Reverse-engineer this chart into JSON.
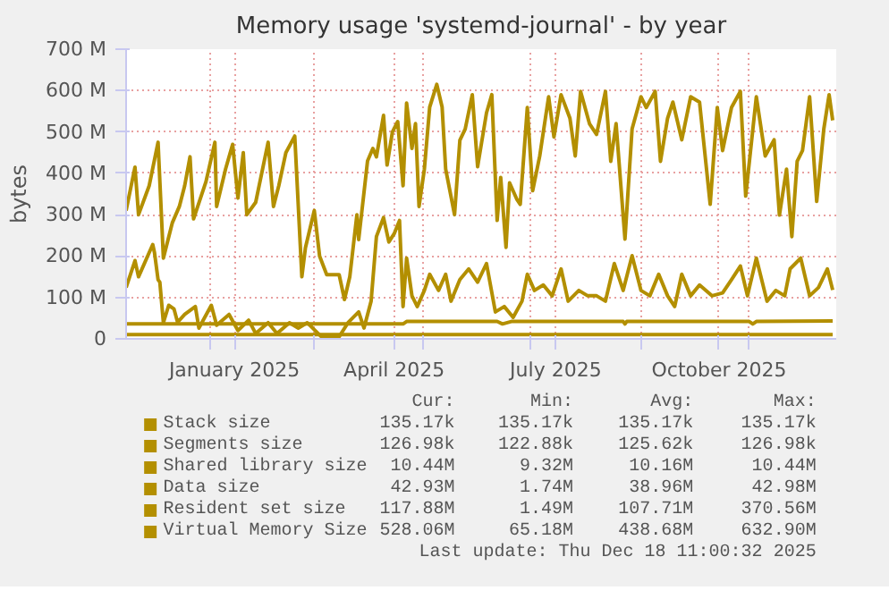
{
  "chart_data": {
    "type": "line",
    "title": "Memory usage 'systemd-journal' - by year",
    "ylabel": "bytes",
    "xlim": [
      "2024-11-15",
      "2025-12-20"
    ],
    "xticks": [
      {
        "value": "2025-01-01",
        "label": null
      },
      {
        "value": "2025-01-15",
        "label": "January 2025"
      },
      {
        "value": "2025-03-01",
        "label": null
      },
      {
        "value": "2025-04-15",
        "label": "April 2025"
      },
      {
        "value": "2025-05-01",
        "label": null
      },
      {
        "value": "2025-07-01",
        "label": null
      },
      {
        "value": "2025-07-15",
        "label": "July 2025"
      },
      {
        "value": "2025-09-01",
        "label": null
      },
      {
        "value": "2025-10-15",
        "label": "October 2025"
      },
      {
        "value": "2025-11-01",
        "label": null
      }
    ],
    "ylim": [
      0,
      700
    ],
    "yticks": [
      0,
      {
        "value": 100,
        "label": "100 M"
      },
      {
        "value": 200,
        "label": "200 M"
      },
      {
        "value": 300,
        "label": "300 M"
      },
      {
        "value": 400,
        "label": "400 M"
      },
      {
        "value": 500,
        "label": "500 M"
      },
      {
        "value": 600,
        "label": "600 M"
      },
      {
        "value": 700,
        "label": "700 M"
      }
    ],
    "grid": true,
    "legend": "bottom",
    "series": [
      {
        "name": "Stack size",
        "color": "#b38f00",
        "values": [
          null
        ]
      },
      {
        "name": "Segments size",
        "color": "#b38f00",
        "values": [
          null
        ]
      },
      {
        "name": "Shared library size",
        "color": "#b38f00",
        "x": [
          "2024-11-15",
          "2025-12-18"
        ],
        "values": [
          10,
          10
        ]
      },
      {
        "name": "Data size",
        "color": "#b38f00",
        "x": [
          "2024-11-15",
          "2025-04-20",
          "2025-04-22",
          "2025-06-12",
          "2025-06-15",
          "2025-06-20",
          "2025-08-22",
          "2025-08-23",
          "2025-08-24",
          "2025-11-01",
          "2025-11-03",
          "2025-11-05",
          "2025-12-18"
        ],
        "values": [
          36,
          36,
          42,
          42,
          36,
          42,
          42,
          36,
          42,
          42,
          36,
          42,
          43
        ]
      },
      {
        "name": "Resident set size",
        "color": "#b38f00",
        "x": [
          "2024-11-15",
          "2024-11-20",
          "2024-11-22",
          "2024-11-30",
          "2024-12-01",
          "2024-12-03",
          "2024-12-04",
          "2024-12-06",
          "2024-12-09",
          "2024-12-12",
          "2024-12-14",
          "2024-12-18",
          "2024-12-24",
          "2024-12-26",
          "2025-01-02",
          "2025-01-05",
          "2025-01-12",
          "2025-01-17",
          "2025-01-23",
          "2025-01-27",
          "2025-02-03",
          "2025-02-08",
          "2025-02-15",
          "2025-02-20",
          "2025-02-25",
          "2025-03-05",
          "2025-03-15",
          "2025-03-20",
          "2025-03-26",
          "2025-03-29",
          "2025-04-02",
          "2025-04-05",
          "2025-04-09",
          "2025-04-12",
          "2025-04-15",
          "2025-04-18",
          "2025-04-20",
          "2025-04-22",
          "2025-04-25",
          "2025-04-28",
          "2025-05-02",
          "2025-05-05",
          "2025-05-10",
          "2025-05-14",
          "2025-05-17",
          "2025-05-22",
          "2025-05-27",
          "2025-06-01",
          "2025-06-06",
          "2025-06-11",
          "2025-06-16",
          "2025-06-21",
          "2025-06-26",
          "2025-06-29",
          "2025-07-03",
          "2025-07-08",
          "2025-07-13",
          "2025-07-18",
          "2025-07-22",
          "2025-07-28",
          "2025-08-02",
          "2025-08-07",
          "2025-08-12",
          "2025-08-17",
          "2025-08-22",
          "2025-08-27",
          "2025-09-01",
          "2025-09-06",
          "2025-09-11",
          "2025-09-16",
          "2025-09-20",
          "2025-09-24",
          "2025-09-29",
          "2025-10-04",
          "2025-10-11",
          "2025-10-17",
          "2025-10-22",
          "2025-10-27",
          "2025-10-31",
          "2025-11-05",
          "2025-11-11",
          "2025-11-16",
          "2025-11-21",
          "2025-11-24",
          "2025-11-30",
          "2025-12-05",
          "2025-12-10",
          "2025-12-15",
          "2025-12-18"
        ],
        "values": [
          124,
          189,
          150,
          228,
          208,
          143,
          137,
          39,
          81,
          72,
          40,
          59,
          78,
          26,
          81,
          33,
          59,
          20,
          45,
          13,
          39,
          13,
          39,
          26,
          39,
          5,
          5,
          39,
          65,
          26,
          91,
          247,
          293,
          234,
          254,
          286,
          78,
          195,
          104,
          78,
          117,
          156,
          117,
          156,
          91,
          143,
          169,
          137,
          182,
          65,
          78,
          52,
          91,
          156,
          117,
          130,
          104,
          169,
          91,
          117,
          104,
          104,
          91,
          182,
          117,
          201,
          117,
          104,
          156,
          104,
          78,
          156,
          104,
          130,
          104,
          111,
          143,
          176,
          104,
          195,
          91,
          117,
          104,
          169,
          195,
          104,
          124,
          169,
          118
        ]
      },
      {
        "name": "Virtual Memory Size",
        "color": "#b38f00",
        "x": [
          "2024-11-15",
          "2024-11-20",
          "2024-11-22",
          "2024-11-28",
          "2024-12-03",
          "2024-12-06",
          "2024-12-11",
          "2024-12-15",
          "2024-12-18",
          "2024-12-21",
          "2024-12-23",
          "2024-12-30",
          "2025-01-04",
          "2025-01-05",
          "2025-01-10",
          "2025-01-14",
          "2025-01-17",
          "2025-01-20",
          "2025-01-22",
          "2025-01-27",
          "2025-02-03",
          "2025-02-06",
          "2025-02-09",
          "2025-02-13",
          "2025-02-18",
          "2025-02-22",
          "2025-02-24",
          "2025-03-01",
          "2025-03-04",
          "2025-03-08",
          "2025-03-15",
          "2025-03-18",
          "2025-03-21",
          "2025-03-25",
          "2025-03-26",
          "2025-03-31",
          "2025-04-03",
          "2025-04-05",
          "2025-04-09",
          "2025-04-11",
          "2025-04-14",
          "2025-04-17",
          "2025-04-20",
          "2025-04-22",
          "2025-04-25",
          "2025-04-27",
          "2025-04-29",
          "2025-05-02",
          "2025-05-05",
          "2025-05-09",
          "2025-05-12",
          "2025-05-14",
          "2025-05-19",
          "2025-05-22",
          "2025-05-25",
          "2025-05-29",
          "2025-06-01",
          "2025-06-06",
          "2025-06-09",
          "2025-06-12",
          "2025-06-14",
          "2025-06-17",
          "2025-06-19",
          "2025-06-23",
          "2025-06-25",
          "2025-06-29",
          "2025-07-02",
          "2025-07-06",
          "2025-07-11",
          "2025-07-14",
          "2025-07-18",
          "2025-07-23",
          "2025-07-26",
          "2025-07-29",
          "2025-08-03",
          "2025-08-07",
          "2025-08-12",
          "2025-08-15",
          "2025-08-18",
          "2025-08-23",
          "2025-08-27",
          "2025-09-01",
          "2025-09-04",
          "2025-09-09",
          "2025-09-12",
          "2025-09-16",
          "2025-09-19",
          "2025-09-24",
          "2025-09-29",
          "2025-10-04",
          "2025-10-10",
          "2025-10-14",
          "2025-10-17",
          "2025-10-22",
          "2025-10-27",
          "2025-10-30",
          "2025-11-05",
          "2025-11-10",
          "2025-11-15",
          "2025-11-18",
          "2025-11-22",
          "2025-11-25",
          "2025-11-28",
          "2025-12-01",
          "2025-12-05",
          "2025-12-09",
          "2025-12-13",
          "2025-12-16",
          "2025-12-18"
        ],
        "values": [
          310,
          415,
          300,
          370,
          475,
          195,
          280,
          320,
          370,
          440,
          290,
          380,
          475,
          320,
          410,
          470,
          340,
          450,
          300,
          330,
          475,
          320,
          370,
          450,
          490,
          150,
          220,
          310,
          200,
          155,
          155,
          95,
          150,
          300,
          240,
          430,
          460,
          440,
          540,
          420,
          500,
          525,
          370,
          570,
          460,
          520,
          320,
          410,
          560,
          615,
          560,
          410,
          300,
          480,
          507,
          590,
          416,
          546,
          590,
          286,
          390,
          221,
          377,
          338,
          325,
          559,
          358,
          442,
          585,
          488,
          590,
          533,
          442,
          598,
          520,
          494,
          598,
          429,
          520,
          241,
          507,
          585,
          559,
          598,
          429,
          533,
          572,
          481,
          585,
          572,
          325,
          559,
          455,
          559,
          598,
          345,
          585,
          442,
          481,
          299,
          410,
          247,
          429,
          455,
          585,
          332,
          507,
          590,
          528
        ]
      }
    ],
    "annotations": [
      "Cur:",
      "Min:",
      "Avg:",
      "Max:",
      "135.17k",
      "135.17k",
      "135.17k",
      "135.17k",
      "126.98k",
      "122.88k",
      "125.62k",
      "126.98k",
      "10.44M",
      "9.32M",
      "10.16M",
      "10.44M",
      "42.93M",
      "1.74M",
      "38.96M",
      "42.98M",
      "117.88M",
      "1.49M",
      "107.71M",
      "370.56M",
      "528.06M",
      "65.18M",
      "438.68M",
      "632.90M",
      "Last update: Thu Dec 18 11:00:32 2025"
    ]
  }
}
